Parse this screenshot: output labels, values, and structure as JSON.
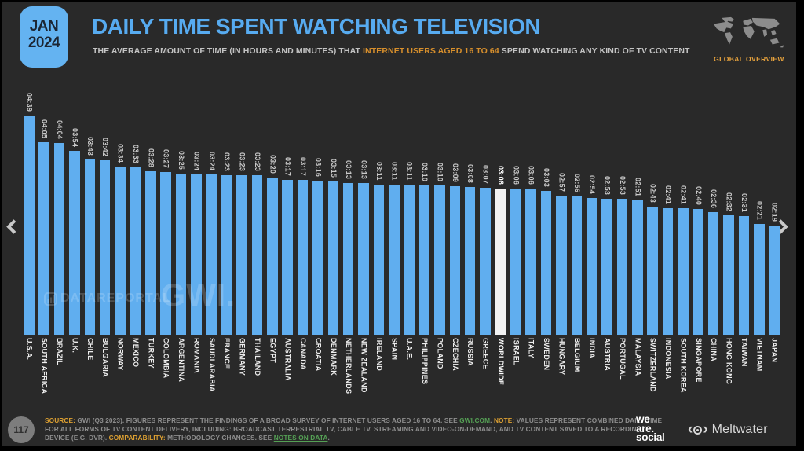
{
  "header": {
    "badge_month": "JAN",
    "badge_year": "2024",
    "title": "DAILY TIME SPENT WATCHING TELEVISION",
    "subtitle_prefix": "THE AVERAGE AMOUNT OF TIME (IN HOURS AND MINUTES) THAT ",
    "subtitle_highlight": "INTERNET USERS AGED 16 TO 64",
    "subtitle_suffix": " SPEND WATCHING ANY KIND OF TV CONTENT",
    "overview_label": "GLOBAL OVERVIEW"
  },
  "icons": {
    "prev": "chevron-left-icon",
    "next": "chevron-right-icon",
    "map": "world-map-icon",
    "datareportal": "datareportal-signal-icon",
    "meltwater": "meltwater-eye-icon"
  },
  "watermarks": {
    "datareportal": "DATAREPORTAL",
    "gwi": "GWI."
  },
  "chart_data": {
    "type": "bar",
    "title": "DAILY TIME SPENT WATCHING TELEVISION",
    "unit": "hours:minutes per day",
    "ylim": [
      0,
      279
    ],
    "grid": false,
    "bar_color": "#60AEEF",
    "highlight_color": "#F2F2F2",
    "highlight_index": 31,
    "categories": [
      "U.S.A.",
      "SOUTH AFRICA",
      "BRAZIL",
      "U.K.",
      "CHILE",
      "BULGARIA",
      "NORWAY",
      "MEXICO",
      "TURKEY",
      "COLOMBIA",
      "ARGENTINA",
      "ROMANIA",
      "SAUDI ARABIA",
      "FRANCE",
      "GERMANY",
      "THAILAND",
      "EGYPT",
      "AUSTRALIA",
      "CANADA",
      "CROATIA",
      "DENMARK",
      "NETHERLANDS",
      "NEW ZEALAND",
      "IRELAND",
      "SPAIN",
      "U.A.E.",
      "PHILIPPINES",
      "POLAND",
      "CZECHIA",
      "RUSSIA",
      "GREECE",
      "WORLDWIDE",
      "ISRAEL",
      "ITALY",
      "SWEDEN",
      "HUNGARY",
      "BELGIUM",
      "INDIA",
      "AUSTRIA",
      "PORTUGAL",
      "MALAYSIA",
      "SWITZERLAND",
      "INDONESIA",
      "SOUTH KOREA",
      "SINGAPORE",
      "CHINA",
      "HONG KONG",
      "TAIWAN",
      "VIETNAM",
      "JAPAN"
    ],
    "values": [
      "04:39",
      "04:05",
      "04:04",
      "03:54",
      "03:43",
      "03:42",
      "03:34",
      "03:33",
      "03:28",
      "03:27",
      "03:25",
      "03:24",
      "03:24",
      "03:23",
      "03:23",
      "03:23",
      "03:20",
      "03:17",
      "03:17",
      "03:16",
      "03:15",
      "03:13",
      "03:13",
      "03:11",
      "03:11",
      "03:11",
      "03:10",
      "03:10",
      "03:09",
      "03:08",
      "03:07",
      "03:06",
      "03:06",
      "03:06",
      "03:03",
      "02:57",
      "02:56",
      "02:54",
      "02:53",
      "02:53",
      "02:51",
      "02:43",
      "02:41",
      "02:41",
      "02:40",
      "02:36",
      "02:32",
      "02:31",
      "02:21",
      "02:19"
    ],
    "values_minutes": [
      279,
      245,
      244,
      234,
      223,
      222,
      214,
      213,
      208,
      207,
      205,
      204,
      204,
      203,
      203,
      203,
      200,
      197,
      197,
      196,
      195,
      193,
      193,
      191,
      191,
      191,
      190,
      190,
      189,
      188,
      187,
      186,
      186,
      186,
      183,
      177,
      176,
      174,
      173,
      173,
      171,
      163,
      161,
      161,
      160,
      156,
      152,
      151,
      141,
      139
    ]
  },
  "footer": {
    "page_number": "117",
    "segments": [
      {
        "text": "SOURCE: ",
        "style": "orange"
      },
      {
        "text": "GWI (Q3 2023). FIGURES REPRESENT THE FINDINGS OF A BROAD SURVEY OF INTERNET USERS AGED 16 TO 64. SEE ",
        "style": "plain"
      },
      {
        "text": "GWI.COM",
        "style": "green"
      },
      {
        "text": ". ",
        "style": "plain"
      },
      {
        "text": "NOTE: ",
        "style": "orange"
      },
      {
        "text": "VALUES REPRESENT COMBINED DAILY TIME FOR ALL FORMS OF TV CONTENT DELIVERY, INCLUDING: BROADCAST TERRESTRIAL TV, CABLE TV, STREAMING AND VIDEO-ON-DEMAND, AND TV CONTENT SAVED TO A RECORDING DEVICE (E.G. DVR). ",
        "style": "plain"
      },
      {
        "text": "COMPARABILITY: ",
        "style": "orange"
      },
      {
        "text": "METHODOLOGY CHANGES. SEE ",
        "style": "plain"
      },
      {
        "text": "NOTES ON DATA",
        "style": "green-u"
      },
      {
        "text": ".",
        "style": "plain"
      }
    ],
    "logos": {
      "we_are_social_lines": [
        "we",
        "are.",
        "social"
      ],
      "meltwater": "Meltwater"
    }
  },
  "colors": {
    "background": "#292929",
    "accent_blue": "#60AEEF",
    "badge_blue": "#64B3F1",
    "title_blue": "#57ABF0",
    "accent_orange": "#DDA032",
    "subtitle_orange": "#D78F2C",
    "link_green": "#55A055",
    "highlight_bar": "#F2F2F2"
  }
}
